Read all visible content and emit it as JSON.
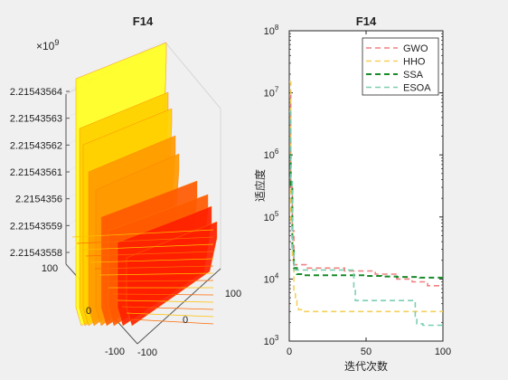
{
  "chart_data": [
    {
      "type": "surface",
      "title": "F14",
      "z_exponent_label": "×10",
      "z_exponent_power": "9",
      "z_ticks": [
        "2.21543564",
        "2.21543563",
        "2.21543562",
        "2.21543561",
        "2.2154356",
        "2.21543559",
        "2.21543558"
      ],
      "x_ticks": [
        "100",
        "0",
        "-100"
      ],
      "y_ticks": [
        "-100",
        "0",
        "100"
      ],
      "colormap": [
        "#ffff20",
        "#ffd000",
        "#ff9a00",
        "#ff5a00",
        "#ff2000"
      ]
    },
    {
      "type": "line",
      "title": "F14",
      "xlabel": "迭代次数",
      "ylabel": "适应度",
      "xlim": [
        0,
        100
      ],
      "ylim": [
        1000,
        100000000
      ],
      "yscale": "log",
      "x_ticks": [
        "0",
        "50",
        "100"
      ],
      "y_tick_base": "10",
      "y_tick_powers": [
        "3",
        "4",
        "5",
        "6",
        "7",
        "8"
      ],
      "legend_position": "top-right",
      "series": [
        {
          "name": "GWO",
          "color": "#f08080",
          "x": [
            0,
            1,
            2,
            3,
            10,
            11,
            35,
            36,
            55,
            56,
            70,
            80,
            90,
            100
          ],
          "y": [
            9000000,
            300000,
            60000,
            17000,
            17000,
            15000,
            15000,
            13500,
            13500,
            12000,
            10000,
            9000,
            7800,
            7800
          ]
        },
        {
          "name": "HHO",
          "color": "#f5d05a",
          "x": [
            0,
            1,
            2,
            3,
            4,
            5,
            6,
            8,
            10,
            30,
            60,
            80,
            100
          ],
          "y": [
            15000000,
            80000,
            20000,
            6000,
            4500,
            3500,
            3200,
            3000,
            3000,
            3000,
            3000,
            3000,
            3000
          ]
        },
        {
          "name": "SSA",
          "color": "#1a8a2a",
          "x": [
            0,
            1,
            2,
            3,
            5,
            10,
            20,
            40,
            50,
            60,
            70,
            85,
            100
          ],
          "y": [
            1000000,
            300000,
            30000,
            15000,
            12000,
            11500,
            11500,
            11500,
            11200,
            11000,
            10800,
            10500,
            10500
          ]
        },
        {
          "name": "ESOA",
          "color": "#7ccfb0",
          "x": [
            0,
            1,
            2,
            3,
            10,
            40,
            42,
            43,
            50,
            80,
            82,
            83,
            86,
            87,
            100
          ],
          "y": [
            5000000,
            400000,
            30000,
            14000,
            14000,
            14000,
            7000,
            4500,
            4500,
            4500,
            2500,
            1900,
            1900,
            1800,
            1800
          ]
        }
      ]
    }
  ]
}
